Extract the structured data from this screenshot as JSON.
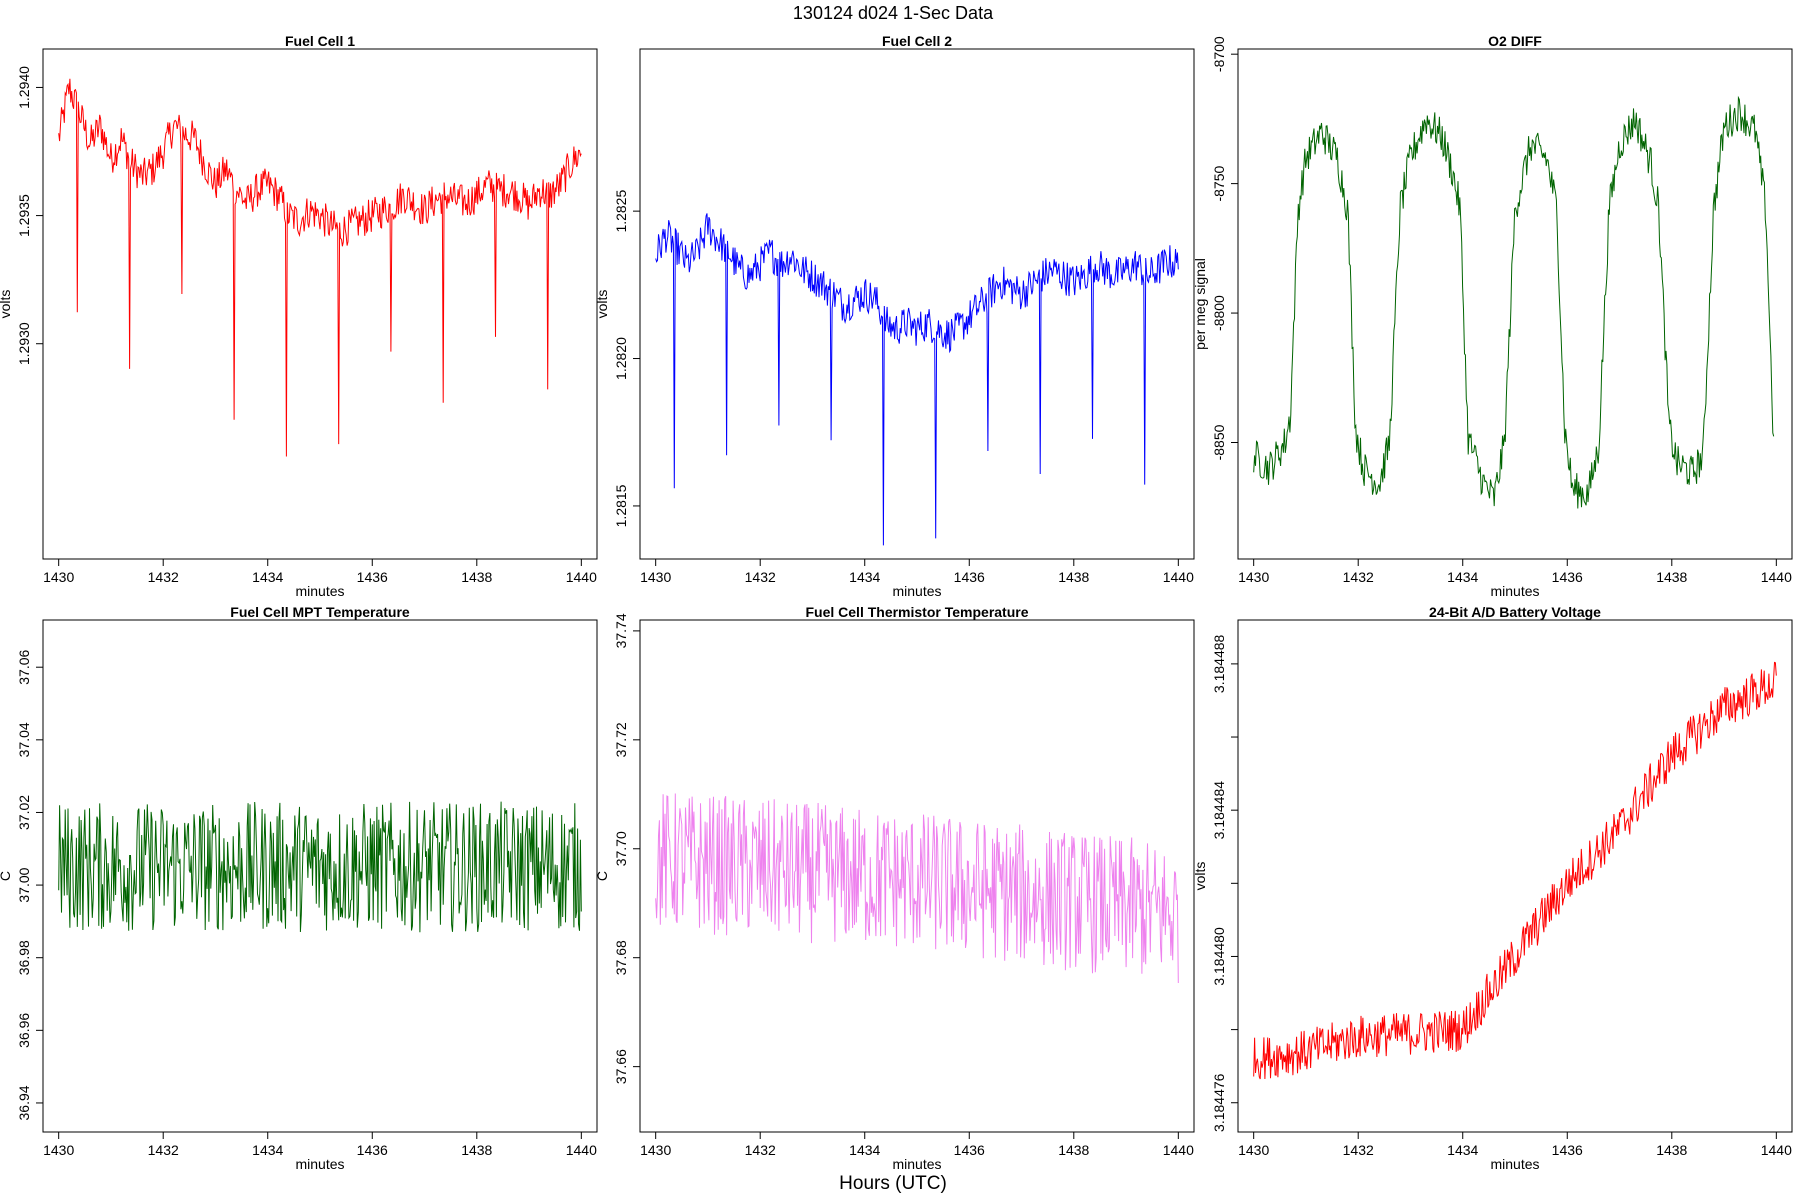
{
  "page": {
    "suptitle": "130124   d024   1-Sec Data",
    "bottom_label": "Hours (UTC)"
  },
  "chart_data": [
    {
      "type": "line",
      "title": "Fuel Cell 1",
      "xlabel": "minutes",
      "ylabel": "volts",
      "color": "#ff0000",
      "xlim": [
        1429.7,
        1440.3
      ],
      "ylim": [
        1.29216,
        1.29415
      ],
      "xticks": [
        1430,
        1432,
        1434,
        1436,
        1438,
        1440
      ],
      "xtick_labels": [
        "1430",
        "1432",
        "1434",
        "1436",
        "1438",
        "1440"
      ],
      "yticks": [
        1.293,
        1.2935,
        1.294
      ],
      "ytick_labels": [
        "1.2930",
        "1.2935",
        "1.2940"
      ],
      "x": [
        1430.0,
        1430.2,
        1430.4,
        1430.6,
        1430.8,
        1431.0,
        1431.2,
        1431.4,
        1431.6,
        1431.8,
        1432.0,
        1432.2,
        1432.4,
        1432.6,
        1432.8,
        1433.0,
        1433.2,
        1433.4,
        1433.6,
        1433.8,
        1434.0,
        1434.2,
        1434.4,
        1434.6,
        1434.8,
        1435.0,
        1435.2,
        1435.4,
        1435.6,
        1435.8,
        1436.0,
        1436.2,
        1436.4,
        1436.6,
        1436.8,
        1437.0,
        1437.2,
        1437.4,
        1437.6,
        1437.8,
        1438.0,
        1438.2,
        1438.4,
        1438.6,
        1438.8,
        1439.0,
        1439.2,
        1439.4,
        1439.6,
        1439.8,
        1440.0
      ],
      "y": [
        1.2938,
        1.294,
        1.2939,
        1.29378,
        1.29385,
        1.29372,
        1.2938,
        1.2937,
        1.29365,
        1.29368,
        1.29375,
        1.29385,
        1.29382,
        1.2938,
        1.2937,
        1.29362,
        1.29368,
        1.2936,
        1.29355,
        1.2936,
        1.29362,
        1.29358,
        1.2935,
        1.29348,
        1.29352,
        1.2935,
        1.29346,
        1.29344,
        1.29346,
        1.29348,
        1.2935,
        1.29352,
        1.29354,
        1.29358,
        1.29355,
        1.29352,
        1.29356,
        1.29358,
        1.29356,
        1.29355,
        1.29358,
        1.29362,
        1.2936,
        1.2936,
        1.29358,
        1.29354,
        1.2936,
        1.29358,
        1.29362,
        1.2937,
        1.29375
      ]
    },
    {
      "type": "line",
      "title": "Fuel Cell 2",
      "xlabel": "minutes",
      "ylabel": "volts",
      "color": "#0000ff",
      "xlim": [
        1429.7,
        1440.3
      ],
      "ylim": [
        1.28132,
        1.28305
      ],
      "xticks": [
        1430,
        1432,
        1434,
        1436,
        1438,
        1440
      ],
      "xtick_labels": [
        "1430",
        "1432",
        "1434",
        "1436",
        "1438",
        "1440"
      ],
      "yticks": [
        1.2815,
        1.282,
        1.2825
      ],
      "ytick_labels": [
        "1.2815",
        "1.2820",
        "1.2825"
      ],
      "x": [
        1430.0,
        1430.2,
        1430.4,
        1430.6,
        1430.8,
        1431.0,
        1431.2,
        1431.4,
        1431.6,
        1431.8,
        1432.0,
        1432.2,
        1432.4,
        1432.6,
        1432.8,
        1433.0,
        1433.2,
        1433.4,
        1433.6,
        1433.8,
        1434.0,
        1434.2,
        1434.4,
        1434.6,
        1434.8,
        1435.0,
        1435.2,
        1435.4,
        1435.6,
        1435.8,
        1436.0,
        1436.2,
        1436.4,
        1436.6,
        1436.8,
        1437.0,
        1437.2,
        1437.4,
        1437.6,
        1437.8,
        1438.0,
        1438.2,
        1438.4,
        1438.6,
        1438.8,
        1439.0,
        1439.2,
        1439.4,
        1439.6,
        1439.8,
        1440.0
      ],
      "y": [
        1.28235,
        1.28242,
        1.28238,
        1.28232,
        1.28236,
        1.28245,
        1.2824,
        1.28236,
        1.2823,
        1.28228,
        1.28232,
        1.28236,
        1.28232,
        1.28235,
        1.2823,
        1.28228,
        1.28225,
        1.28222,
        1.28218,
        1.2822,
        1.28222,
        1.2822,
        1.28212,
        1.2821,
        1.28212,
        1.2821,
        1.28212,
        1.2821,
        1.28208,
        1.2821,
        1.28214,
        1.28218,
        1.28222,
        1.28226,
        1.28224,
        1.28222,
        1.28225,
        1.28228,
        1.2823,
        1.28228,
        1.28226,
        1.28228,
        1.28232,
        1.2823,
        1.28228,
        1.2823,
        1.28232,
        1.28228,
        1.2823,
        1.28233,
        1.28232
      ]
    },
    {
      "type": "line",
      "title": "O2 DIFF",
      "xlabel": "minutes",
      "ylabel": "per meg signal",
      "color": "#006400",
      "xlim": [
        1429.7,
        1440.3
      ],
      "ylim": [
        -8895,
        -8698
      ],
      "xticks": [
        1430,
        1432,
        1434,
        1436,
        1438,
        1440
      ],
      "xtick_labels": [
        "1430",
        "1432",
        "1434",
        "1436",
        "1438",
        "1440"
      ],
      "yticks": [
        -8850,
        -8800,
        -8750,
        -8700
      ],
      "ytick_labels": [
        "-8850",
        "-8800",
        "-8750",
        "-8700"
      ],
      "x": [
        1430.0,
        1430.3,
        1430.6,
        1430.7,
        1430.85,
        1431.0,
        1431.3,
        1431.6,
        1431.8,
        1431.95,
        1432.1,
        1432.4,
        1432.6,
        1432.8,
        1433.0,
        1433.3,
        1433.6,
        1433.8,
        1433.95,
        1434.1,
        1434.4,
        1434.6,
        1434.8,
        1435.0,
        1435.3,
        1435.6,
        1435.8,
        1435.95,
        1436.1,
        1436.4,
        1436.6,
        1436.8,
        1437.0,
        1437.3,
        1437.6,
        1437.75,
        1437.95,
        1438.1,
        1438.4,
        1438.6,
        1438.8,
        1439.0,
        1439.3,
        1439.6,
        1439.8,
        1439.95
      ],
      "y": [
        -8855,
        -8860,
        -8850,
        -8840,
        -8760,
        -8740,
        -8730,
        -8740,
        -8760,
        -8845,
        -8860,
        -8866,
        -8850,
        -8760,
        -8740,
        -8725,
        -8732,
        -8745,
        -8760,
        -8848,
        -8866,
        -8872,
        -8850,
        -8760,
        -8735,
        -8740,
        -8760,
        -8845,
        -8868,
        -8870,
        -8852,
        -8760,
        -8735,
        -8725,
        -8742,
        -8760,
        -8845,
        -8858,
        -8862,
        -8855,
        -8760,
        -8728,
        -8722,
        -8730,
        -8760,
        -8852
      ]
    },
    {
      "type": "line",
      "title": "Fuel Cell MPT Temperature",
      "xlabel": "minutes",
      "ylabel": "C",
      "color": "#006400",
      "xlim": [
        1429.7,
        1440.3
      ],
      "ylim": [
        36.932,
        37.073
      ],
      "xticks": [
        1430,
        1432,
        1434,
        1436,
        1438,
        1440
      ],
      "xtick_labels": [
        "1430",
        "1432",
        "1434",
        "1436",
        "1438",
        "1440"
      ],
      "yticks": [
        36.94,
        36.96,
        36.98,
        37.0,
        37.02,
        37.04,
        37.06
      ],
      "ytick_labels": [
        "36.94",
        "36.96",
        "36.98",
        "37.00",
        "37.02",
        "37.04",
        "37.06"
      ],
      "x": [
        1430.0,
        1440.0
      ],
      "y": [
        37.005,
        37.005
      ],
      "noise": 0.018
    },
    {
      "type": "line",
      "title": "Fuel Cell Thermistor Temperature",
      "xlabel": "minutes",
      "ylabel": "C",
      "color": "#ee82ee",
      "xlim": [
        1429.7,
        1440.3
      ],
      "ylim": [
        37.648,
        37.742
      ],
      "xticks": [
        1430,
        1432,
        1434,
        1436,
        1438,
        1440
      ],
      "xtick_labels": [
        "1430",
        "1432",
        "1434",
        "1436",
        "1438",
        "1440"
      ],
      "yticks": [
        37.66,
        37.68,
        37.7,
        37.72,
        37.74
      ],
      "ytick_labels": [
        "37.66",
        "37.68",
        "37.70",
        "37.72",
        "37.74"
      ],
      "x": [
        1430.0,
        1435.0,
        1440.0
      ],
      "y": [
        37.698,
        37.694,
        37.688
      ],
      "noise": 0.013
    },
    {
      "type": "line",
      "title": "24-Bit A/D Battery Voltage",
      "xlabel": "minutes",
      "ylabel": "volts",
      "color": "#ff0000",
      "xlim": [
        1429.7,
        1440.3
      ],
      "ylim": [
        3.1844752,
        3.1844892
      ],
      "xticks": [
        1430,
        1432,
        1434,
        1436,
        1438,
        1440
      ],
      "xtick_labels": [
        "1430",
        "1432",
        "1434",
        "1436",
        "1438",
        "1440"
      ],
      "yticks": [
        3.184476,
        3.184478,
        3.18448,
        3.184482,
        3.184484,
        3.184486,
        3.184488
      ],
      "ytick_labels": [
        "3.184476",
        "",
        "3.184480",
        "",
        "3.184484",
        "",
        "3.184488"
      ],
      "x": [
        1430.0,
        1431.0,
        1432.0,
        1433.0,
        1434.0,
        1435.0,
        1436.0,
        1437.0,
        1438.0,
        1439.0,
        1440.0
      ],
      "y": [
        3.1844772,
        3.1844774,
        3.1844778,
        3.1844779,
        3.184478,
        3.18448,
        3.184482,
        3.1844835,
        3.1844855,
        3.1844868,
        3.1844875
      ],
      "noise": 6e-07
    }
  ]
}
